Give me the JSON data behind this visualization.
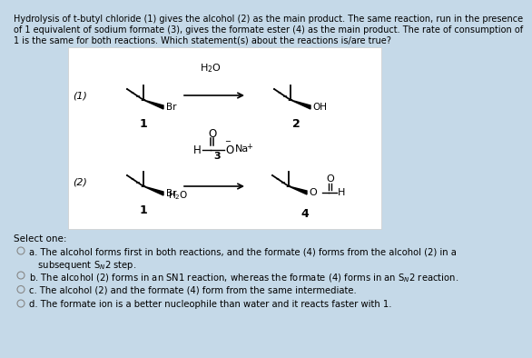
{
  "background_color": "#c5d9e8",
  "box_color": "#ffffff",
  "select_one": "Select one:",
  "title_lines": [
    "Hydrolysis of t-butyl chloride (1) gives the alcohol (2) as the main product. The same reaction, run in the presence",
    "of 1 equivalent of sodium formate (3), gives the formate ester (4) as the main product. The rate of consumption of",
    "1 is the same for both reactions. Which statement(s) about the reactions is/are true?"
  ],
  "opt_a1": "a. The alcohol forms first in both reactions, and the formate (4) forms from the alcohol (2) in a",
  "opt_a2": "   subsequent S",
  "opt_a2b": "2 step.",
  "opt_b": "b. The alcohol (2) forms in an SN1 reaction, whereas the formate (4) forms in an S",
  "opt_b2": "2 reaction.",
  "opt_c": "c. The alcohol (2) and the formate (4) form from the same intermediate.",
  "opt_d": "d. The formate ion is a better nucleophile than water and it reacts faster with 1."
}
